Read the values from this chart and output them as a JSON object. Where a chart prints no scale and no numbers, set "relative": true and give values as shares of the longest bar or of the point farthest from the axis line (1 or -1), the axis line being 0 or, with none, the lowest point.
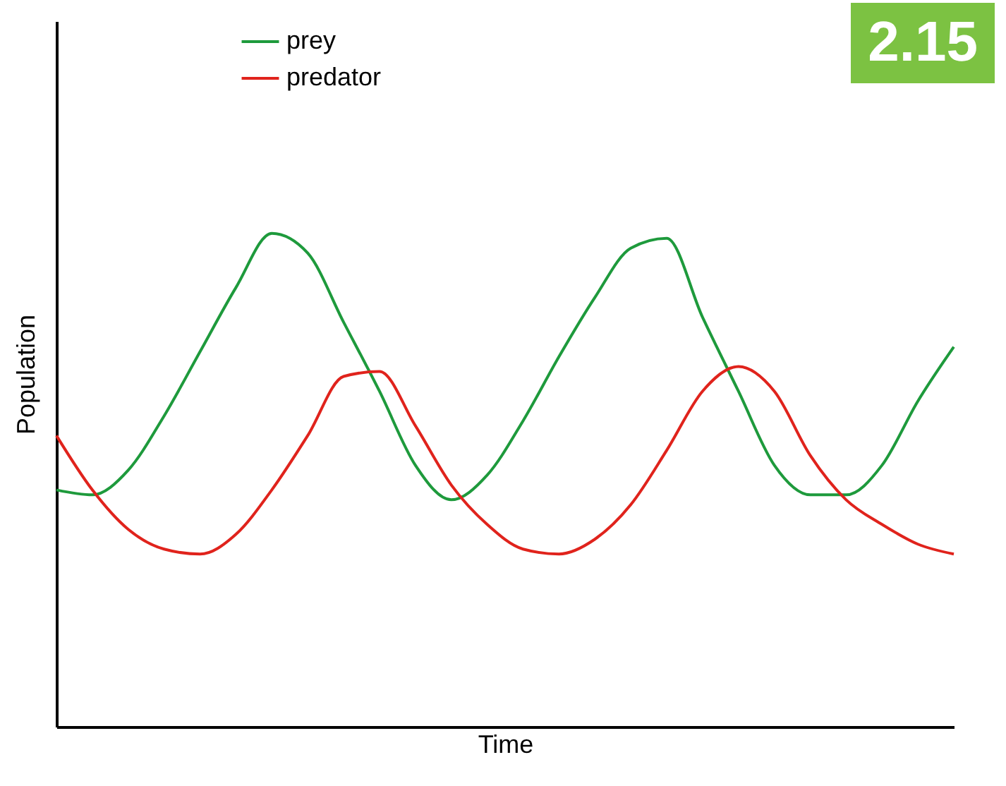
{
  "chart_data": {
    "type": "line",
    "relative": true,
    "xlabel": "Time",
    "ylabel": "Population",
    "legend": "top left",
    "grid": false,
    "marker": "none",
    "annotations": [
      "2.15"
    ],
    "categories": [
      null,
      null,
      null,
      null,
      null,
      null,
      null,
      null,
      null,
      null,
      null,
      null,
      null,
      null,
      null,
      null,
      null,
      null,
      null,
      null,
      null,
      null,
      null,
      null,
      null,
      null
    ],
    "series": [
      {
        "name": "prey",
        "color": "#1e9a3c",
        "values": [
          0.48,
          0.47,
          0.52,
          0.63,
          0.76,
          0.89,
          1.0,
          0.96,
          0.82,
          0.68,
          0.53,
          0.46,
          0.51,
          0.62,
          0.75,
          0.87,
          0.97,
          0.99,
          0.83,
          0.68,
          0.53,
          0.47,
          0.47,
          0.53,
          0.66,
          0.77
        ]
      },
      {
        "name": "predator",
        "color": "#e0231c",
        "values": [
          0.59,
          0.48,
          0.4,
          0.36,
          0.35,
          0.39,
          0.48,
          0.59,
          0.71,
          0.72,
          0.61,
          0.49,
          0.41,
          0.36,
          0.35,
          0.38,
          0.45,
          0.56,
          0.68,
          0.73,
          0.68,
          0.55,
          0.46,
          0.41,
          0.37,
          0.35
        ]
      }
    ]
  }
}
